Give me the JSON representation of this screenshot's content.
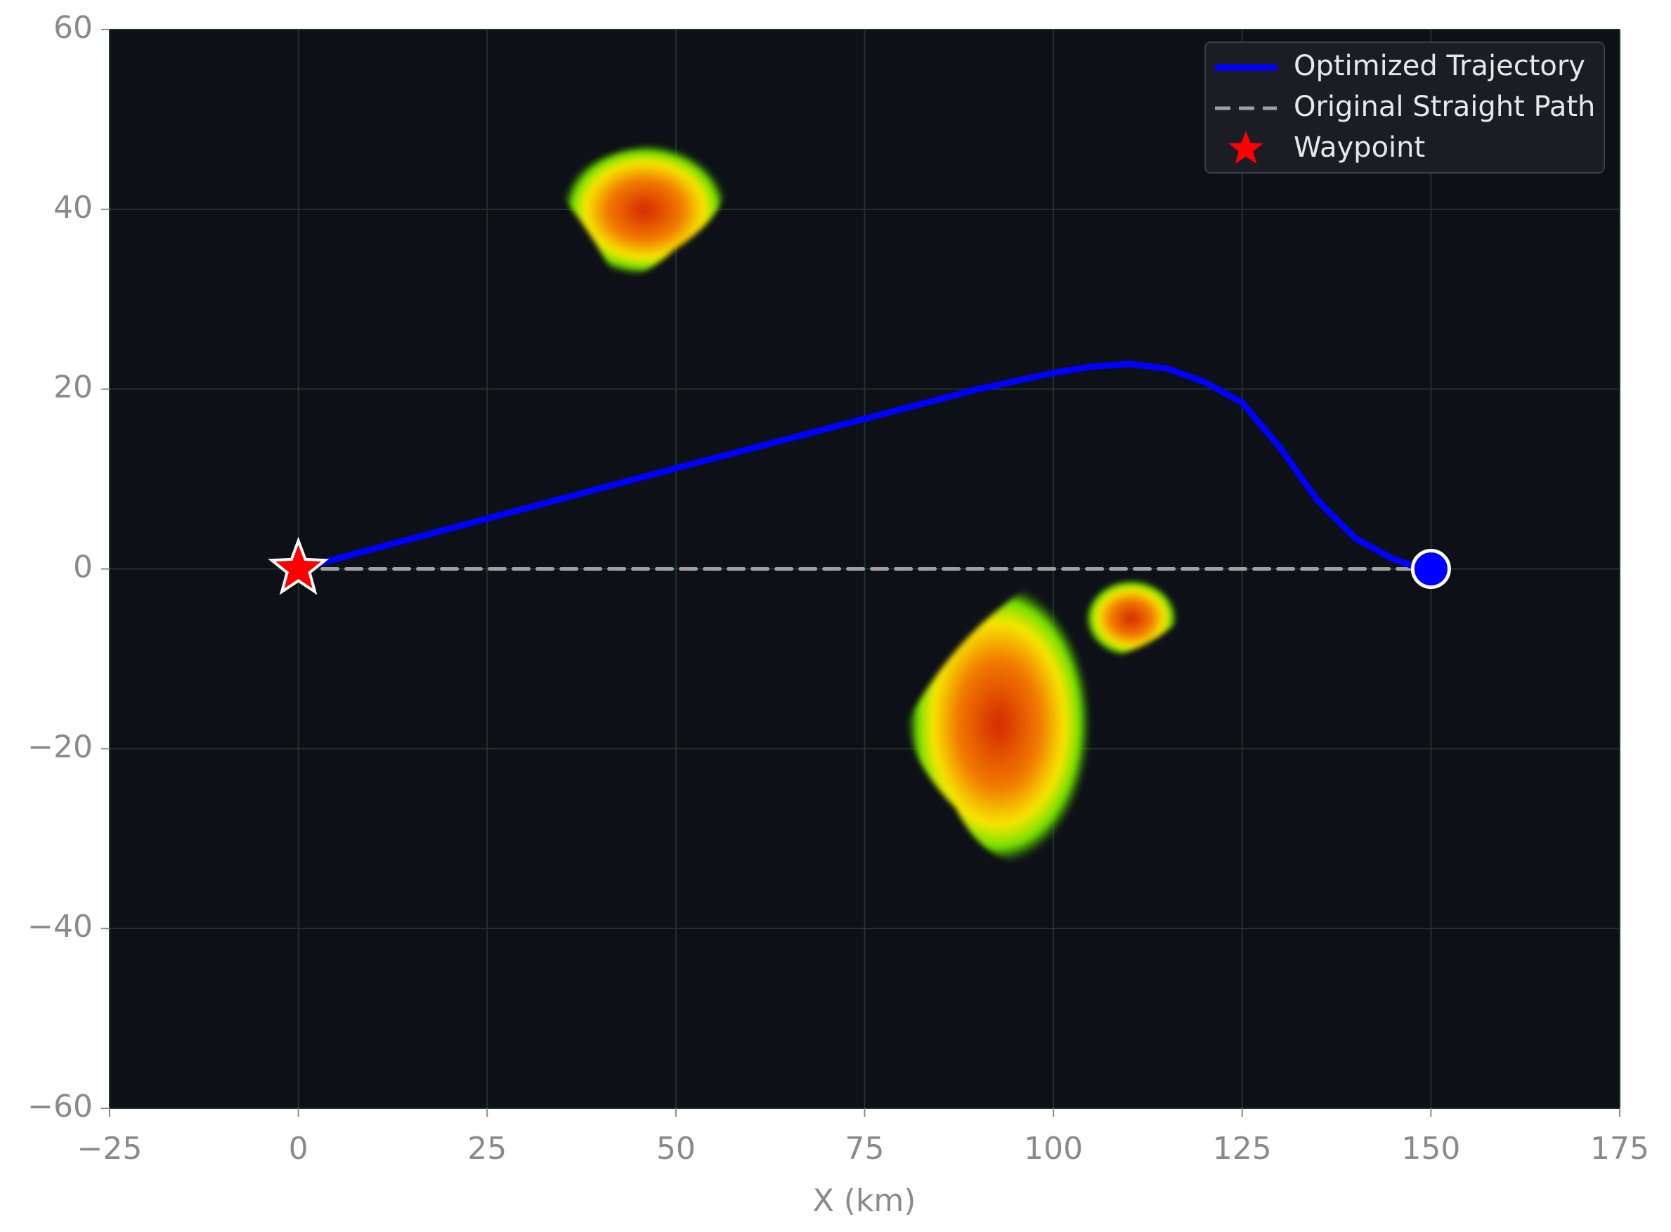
{
  "chart_data": {
    "type": "line",
    "xlabel": "X (km)",
    "xlim": [
      -25,
      175
    ],
    "ylim": [
      -60,
      60
    ],
    "xticks": [
      {
        "value": -25,
        "label": "−25"
      },
      0,
      25,
      50,
      75,
      100,
      125,
      150,
      175
    ],
    "yticks": [
      {
        "value": -60,
        "label": "−60"
      },
      {
        "value": -40,
        "label": "−40"
      },
      {
        "value": -20,
        "label": "−20"
      },
      0,
      20,
      40,
      60
    ],
    "grid": true,
    "grid_color": "#1f3527",
    "background": "#0d1017",
    "legend_loc": "upper right",
    "series": [
      {
        "name": "Optimized Trajectory",
        "color": "#0000ff",
        "x": [
          0,
          25,
          50,
          75,
          90,
          100,
          105,
          110,
          115,
          120,
          125,
          130,
          135,
          140,
          145,
          148,
          150
        ],
        "values": [
          0,
          5.6,
          11.2,
          16.7,
          20,
          21.8,
          22.5,
          22.8,
          22.3,
          20.8,
          18.5,
          13.5,
          7.6,
          3.4,
          1.1,
          0.2,
          0
        ]
      },
      {
        "name": "Original Straight Path",
        "color": "#a0a0a0",
        "style": "dashed",
        "x": [
          0,
          150
        ],
        "values": [
          0,
          0
        ]
      },
      {
        "name": "Waypoint",
        "color": "#ff0000",
        "marker": "star",
        "x": [
          0
        ],
        "values": [
          0
        ]
      }
    ]
  }
}
